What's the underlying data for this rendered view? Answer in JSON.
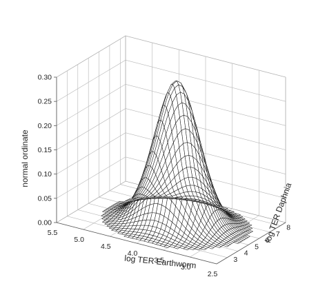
{
  "chart_data": {
    "type": "surface3d",
    "title": "",
    "xlabel": "log TER Earthworm",
    "ylabel": "log TER Daphnia",
    "zlabel": "normal ordinate",
    "xlim": [
      2.5,
      5.5
    ],
    "ylim": [
      2,
      8.5
    ],
    "zlim": [
      0,
      0.3
    ],
    "x_ticks": [
      "5.5",
      "5.0",
      "4.5",
      "4.0",
      "3.5",
      "3.0",
      "2.5"
    ],
    "y_ticks": [
      "3",
      "4",
      "5",
      "6",
      "7",
      "8"
    ],
    "z_ticks": [
      "0.00",
      "0.05",
      "0.10",
      "0.15",
      "0.20",
      "0.25",
      "0.30"
    ],
    "surface": {
      "function": "bivariate normal density",
      "peak_x": 3.9,
      "peak_y": 5.3,
      "peak_z": 0.295,
      "sd_x": 0.38,
      "sd_y": 0.95,
      "grid_x": 40,
      "grid_y": 40
    },
    "grid": true,
    "legend": "none"
  }
}
